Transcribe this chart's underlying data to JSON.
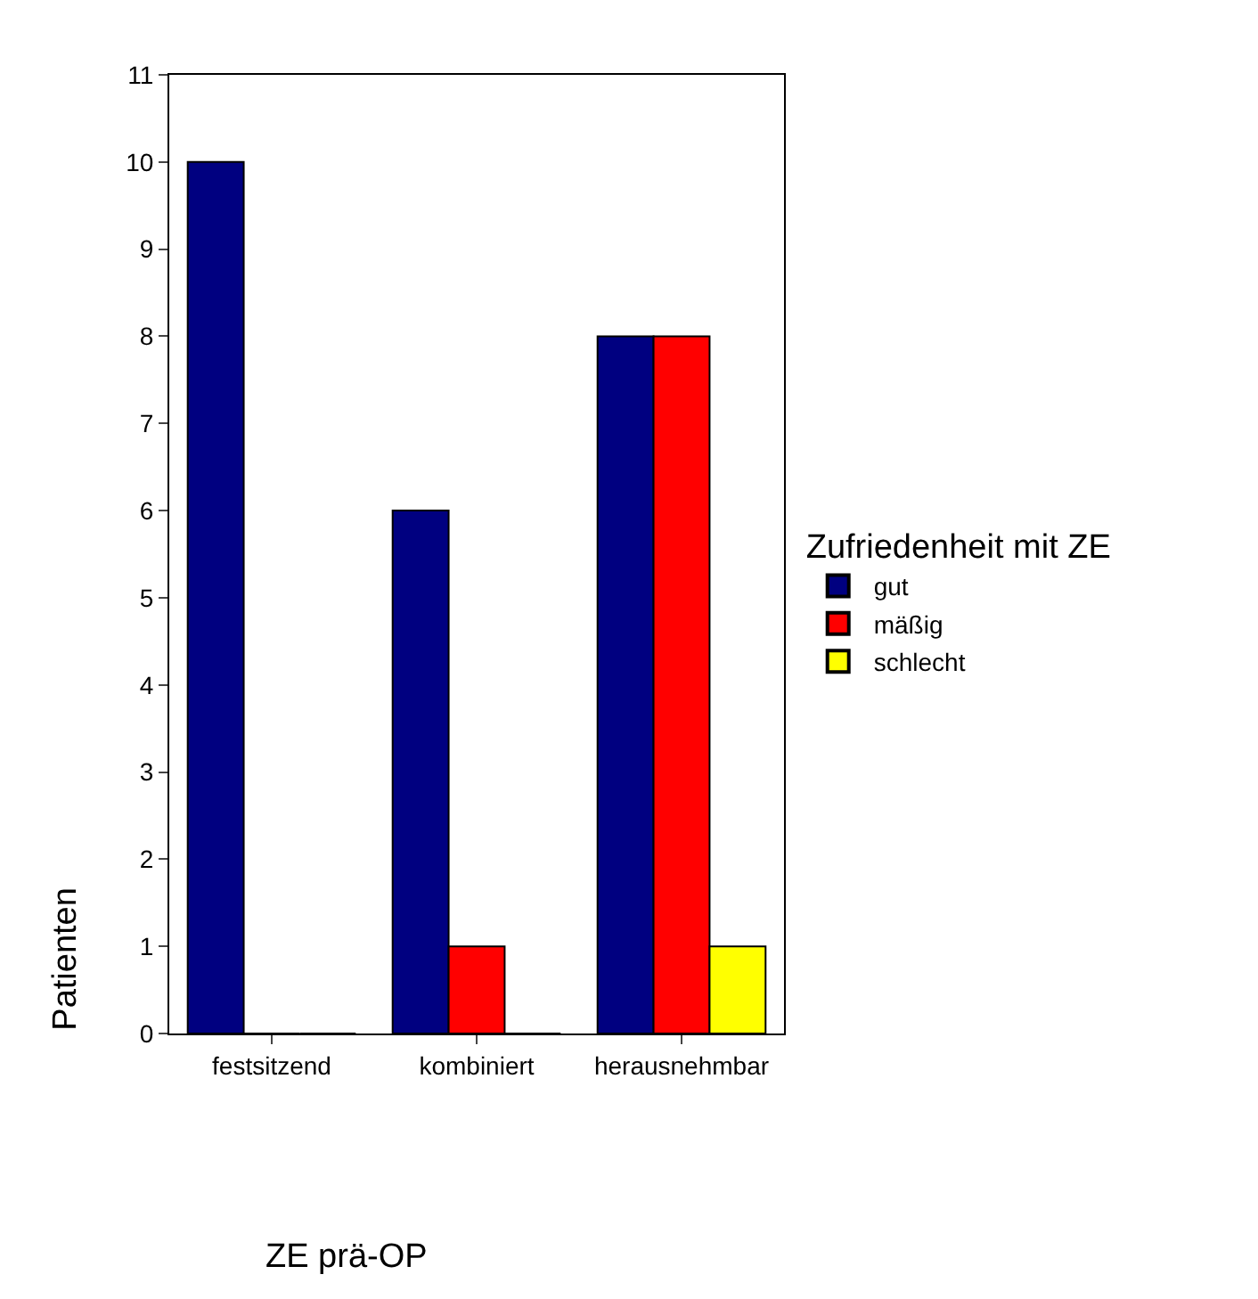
{
  "chart_data": {
    "type": "bar",
    "xlabel": "ZE prä-OP",
    "ylabel": "Patienten",
    "legend_title": "Zufriedenheit mit ZE",
    "categories": [
      "festsitzend",
      "kombiniert",
      "herausnehmbar"
    ],
    "series": [
      {
        "name": "gut",
        "color": "#000080",
        "values": [
          10,
          6,
          8
        ]
      },
      {
        "name": "mäßig",
        "color": "#ff0000",
        "values": [
          0,
          1,
          8
        ]
      },
      {
        "name": "schlecht",
        "color": "#ffff00",
        "values": [
          0,
          0,
          1
        ]
      }
    ],
    "ylim": [
      0,
      11
    ],
    "yticks": [
      0,
      1,
      2,
      3,
      4,
      5,
      6,
      7,
      8,
      9,
      10,
      11
    ],
    "legend": "right"
  }
}
